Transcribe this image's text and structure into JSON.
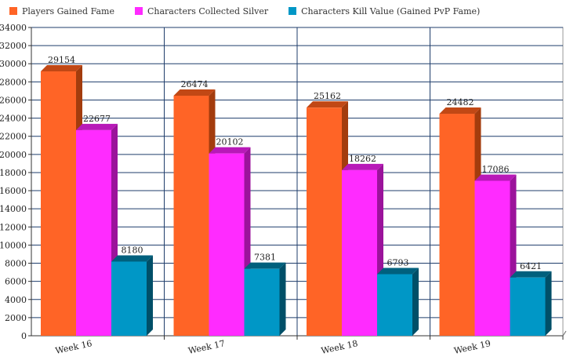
{
  "chart_data": {
    "type": "bar",
    "categories": [
      "Week 16",
      "Week 17",
      "Week 18",
      "Week 19"
    ],
    "series": [
      {
        "name": "Players Gained Fame",
        "color": "#ff6426",
        "top_color": "#c14815",
        "side_color": "#a33c0d",
        "values": [
          29154,
          26474,
          25162,
          24482
        ]
      },
      {
        "name": "Characters Collected Silver",
        "color": "#ff2bff",
        "top_color": "#b819b8",
        "side_color": "#9b139b",
        "values": [
          22677,
          20102,
          18262,
          17086
        ]
      },
      {
        "name": "Characters Kill Value (Gained PvP Fame)",
        "color": "#0097c6",
        "top_color": "#00607d",
        "side_color": "#004f68",
        "values": [
          8180,
          7381,
          6793,
          6421
        ]
      }
    ],
    "ylim": [
      0,
      34000
    ],
    "ytick_step": 2000,
    "grid": true,
    "legend": "top-left"
  }
}
